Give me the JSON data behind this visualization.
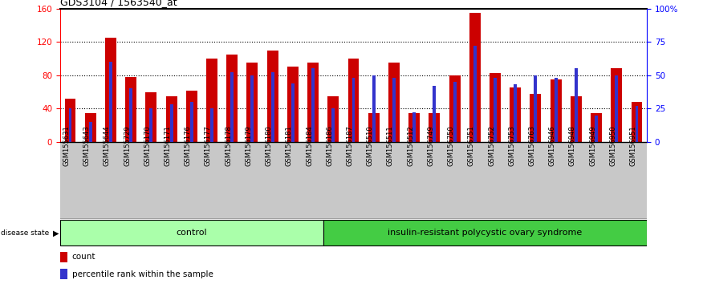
{
  "title": "GDS3104 / 1563540_at",
  "samples": [
    "GSM155631",
    "GSM155643",
    "GSM155644",
    "GSM155729",
    "GSM156170",
    "GSM156171",
    "GSM156176",
    "GSM156177",
    "GSM156178",
    "GSM156179",
    "GSM156180",
    "GSM156181",
    "GSM156184",
    "GSM156186",
    "GSM156187",
    "GSM156510",
    "GSM156511",
    "GSM156512",
    "GSM156749",
    "GSM156750",
    "GSM156751",
    "GSM156752",
    "GSM156753",
    "GSM156763",
    "GSM156946",
    "GSM156948",
    "GSM156949",
    "GSM156950",
    "GSM156951"
  ],
  "count_values": [
    52,
    35,
    125,
    78,
    60,
    55,
    62,
    100,
    105,
    95,
    110,
    90,
    95,
    55,
    100,
    35,
    95,
    35,
    35,
    80,
    155,
    83,
    65,
    58,
    75,
    55,
    35,
    88,
    48
  ],
  "percentile_values": [
    25,
    15,
    60,
    40,
    25,
    28,
    30,
    25,
    52,
    50,
    52,
    44,
    55,
    25,
    48,
    50,
    48,
    22,
    42,
    45,
    72,
    48,
    43,
    50,
    48,
    55,
    20,
    50,
    27
  ],
  "control_count": 13,
  "ylim_left": [
    0,
    160
  ],
  "yticks_left": [
    0,
    40,
    80,
    120,
    160
  ],
  "yticks_right": [
    0,
    25,
    50,
    75,
    100
  ],
  "ytick_labels_right": [
    "0",
    "25",
    "50",
    "75",
    "100%"
  ],
  "bar_color_red": "#CC0000",
  "bar_color_blue": "#3333CC",
  "label_bg_color": "#C8C8C8",
  "control_color": "#AAFFAA",
  "insulin_color": "#44CC44"
}
